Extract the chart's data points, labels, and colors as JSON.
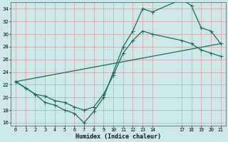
{
  "xlabel": "Humidex (Indice chaleur)",
  "bg_color": "#cce8e8",
  "grid_color": "#d4a8a8",
  "line_color": "#1a6b5a",
  "series": {
    "line1": {
      "x": [
        0,
        1,
        2,
        3,
        4,
        5,
        6,
        7,
        8,
        9,
        10,
        11,
        12,
        13,
        14,
        17,
        18,
        19,
        20,
        21
      ],
      "y": [
        22.5,
        21.5,
        20.5,
        19.2,
        18.8,
        18.0,
        17.5,
        16.0,
        17.8,
        20.0,
        24.0,
        28.0,
        30.5,
        34.0,
        33.5,
        35.5,
        34.5,
        31.0,
        30.5,
        28.5
      ]
    },
    "line2": {
      "x": [
        0,
        1,
        2,
        3,
        4,
        5,
        6,
        7,
        8,
        9,
        10,
        11,
        12,
        13,
        14,
        17,
        18,
        19,
        20,
        21
      ],
      "y": [
        22.5,
        21.5,
        20.5,
        20.2,
        19.5,
        19.2,
        18.5,
        18.0,
        18.5,
        20.5,
        23.5,
        27.0,
        29.0,
        30.5,
        30.0,
        29.0,
        28.5,
        27.5,
        27.0,
        26.5
      ]
    },
    "line3": {
      "x": [
        0,
        21
      ],
      "y": [
        22.5,
        28.5
      ]
    }
  },
  "xlim": [
    -0.5,
    21.5
  ],
  "ylim": [
    15.5,
    35.0
  ],
  "yticks": [
    16,
    18,
    20,
    22,
    24,
    26,
    28,
    30,
    32,
    34
  ],
  "xticks": [
    0,
    1,
    2,
    3,
    4,
    5,
    6,
    7,
    8,
    9,
    10,
    11,
    12,
    13,
    14,
    17,
    18,
    19,
    20,
    21
  ],
  "xlabel_fontsize": 6.0,
  "tick_fontsize": 4.8,
  "marker_size": 2.0,
  "line_width": 0.9
}
